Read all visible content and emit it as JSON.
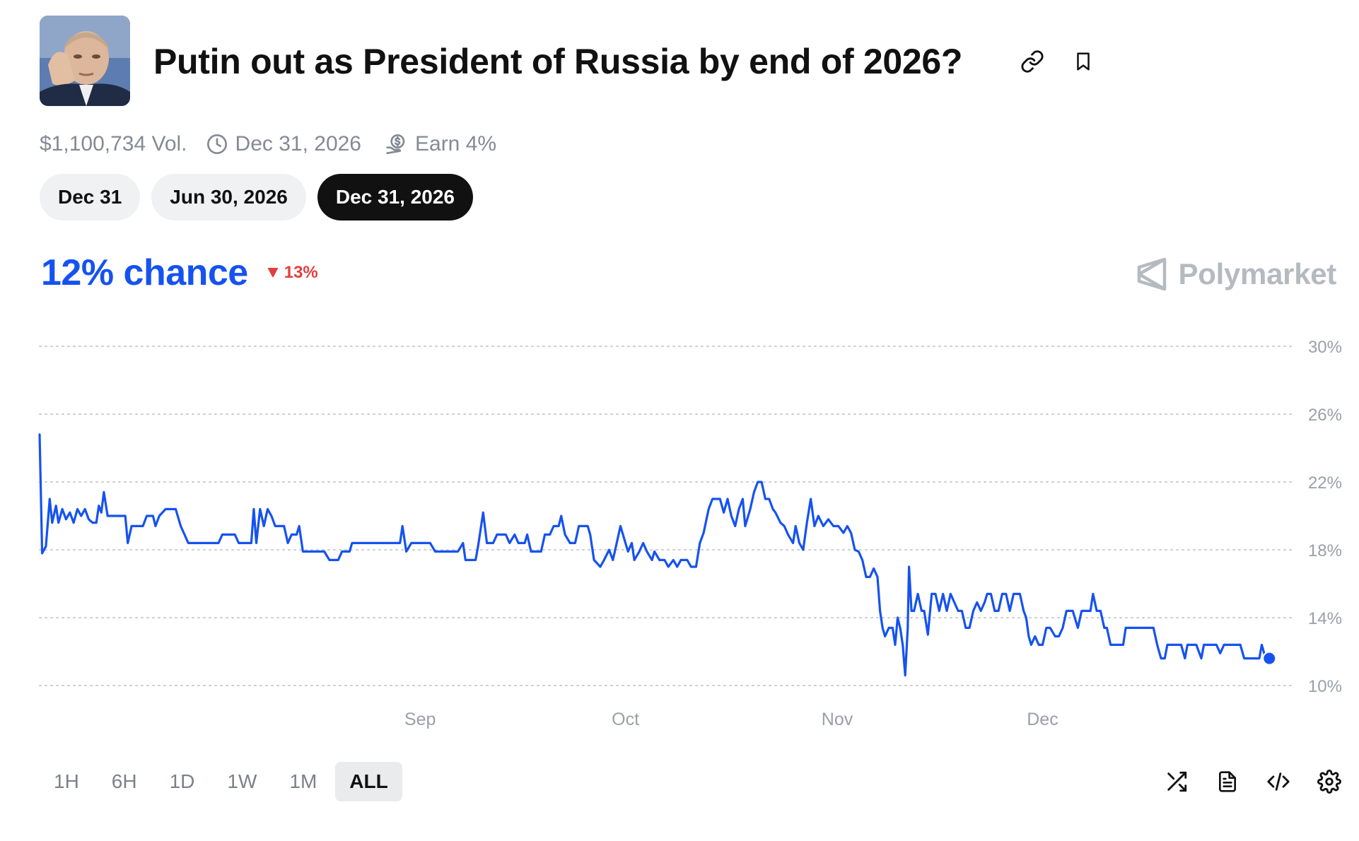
{
  "market": {
    "title": "Putin out as President of Russia by end of 2026?",
    "volume": "$1,100,734 Vol.",
    "end_date": "Dec 31, 2026",
    "earn": "Earn 4%"
  },
  "date_tabs": [
    {
      "label": "Dec 31",
      "active": false
    },
    {
      "label": "Jun 30, 2026",
      "active": false
    },
    {
      "label": "Dec 31, 2026",
      "active": true
    }
  ],
  "chance": {
    "value": "12% chance",
    "delta": "13%",
    "delta_direction": "down"
  },
  "brand": "Polymarket",
  "range_tabs": [
    {
      "label": "1H",
      "active": false
    },
    {
      "label": "6H",
      "active": false
    },
    {
      "label": "1D",
      "active": false
    },
    {
      "label": "1W",
      "active": false
    },
    {
      "label": "1M",
      "active": false
    },
    {
      "label": "ALL",
      "active": true
    }
  ],
  "icons": {
    "link": "link-icon",
    "bookmark": "bookmark-icon",
    "clock": "clock-icon",
    "earn": "earn-rewards-icon",
    "brand": "polymarket-logo-icon",
    "shuffle": "shuffle-icon",
    "document": "document-icon",
    "embed": "code-embed-icon",
    "settings": "gear-icon"
  },
  "colors": {
    "accent": "#1652f0",
    "negative": "#e23f3f",
    "muted": "#848a94"
  },
  "chart_data": {
    "type": "line",
    "y_unit": "%",
    "ylim": [
      10,
      30
    ],
    "y_ticks": [
      "30%",
      "26%",
      "22%",
      "18%",
      "14%",
      "10%"
    ],
    "y_tick_values": [
      30,
      26,
      22,
      18,
      14,
      10
    ],
    "x_ticks": [
      "Sep",
      "Oct",
      "Nov",
      "Dec"
    ],
    "x_tick_positions": [
      0.302,
      0.465,
      0.633,
      0.796
    ],
    "grid": "horizontal dotted",
    "series": [
      {
        "color": "#1652f0",
        "points": [
          [
            0.0,
            24.8
          ],
          [
            0.002,
            17.8
          ],
          [
            0.005,
            18.2
          ],
          [
            0.008,
            21.0
          ],
          [
            0.01,
            19.6
          ],
          [
            0.013,
            20.6
          ],
          [
            0.015,
            19.6
          ],
          [
            0.018,
            20.4
          ],
          [
            0.021,
            19.8
          ],
          [
            0.024,
            20.2
          ],
          [
            0.027,
            19.6
          ],
          [
            0.03,
            20.4
          ],
          [
            0.033,
            20.0
          ],
          [
            0.036,
            20.4
          ],
          [
            0.039,
            19.8
          ],
          [
            0.042,
            19.6
          ],
          [
            0.045,
            19.6
          ],
          [
            0.047,
            20.6
          ],
          [
            0.049,
            20.2
          ],
          [
            0.051,
            21.4
          ],
          [
            0.054,
            20.0
          ],
          [
            0.06,
            20.0
          ],
          [
            0.065,
            20.0
          ],
          [
            0.068,
            20.0
          ],
          [
            0.07,
            18.4
          ],
          [
            0.073,
            19.4
          ],
          [
            0.082,
            19.4
          ],
          [
            0.085,
            20.0
          ],
          [
            0.09,
            20.0
          ],
          [
            0.092,
            19.4
          ],
          [
            0.095,
            20.0
          ],
          [
            0.1,
            20.4
          ],
          [
            0.108,
            20.4
          ],
          [
            0.112,
            19.4
          ],
          [
            0.118,
            18.4
          ],
          [
            0.135,
            18.4
          ],
          [
            0.142,
            18.4
          ],
          [
            0.145,
            18.9
          ],
          [
            0.155,
            18.9
          ],
          [
            0.158,
            18.4
          ],
          [
            0.168,
            18.4
          ],
          [
            0.17,
            20.4
          ],
          [
            0.172,
            18.4
          ],
          [
            0.175,
            20.4
          ],
          [
            0.178,
            19.4
          ],
          [
            0.181,
            20.4
          ],
          [
            0.184,
            20.0
          ],
          [
            0.187,
            19.4
          ],
          [
            0.194,
            19.4
          ],
          [
            0.197,
            18.4
          ],
          [
            0.2,
            18.9
          ],
          [
            0.204,
            18.9
          ],
          [
            0.206,
            19.4
          ],
          [
            0.209,
            17.9
          ],
          [
            0.218,
            17.9
          ],
          [
            0.226,
            17.9
          ],
          [
            0.23,
            17.4
          ],
          [
            0.237,
            17.4
          ],
          [
            0.24,
            17.9
          ],
          [
            0.246,
            17.9
          ],
          [
            0.248,
            18.4
          ],
          [
            0.27,
            18.4
          ],
          [
            0.286,
            18.4
          ],
          [
            0.288,
            19.4
          ],
          [
            0.291,
            17.9
          ],
          [
            0.295,
            18.4
          ],
          [
            0.3,
            18.4
          ],
          [
            0.31,
            18.4
          ],
          [
            0.314,
            17.9
          ],
          [
            0.332,
            17.9
          ],
          [
            0.336,
            18.4
          ],
          [
            0.338,
            17.4
          ],
          [
            0.346,
            17.4
          ],
          [
            0.348,
            18.2
          ],
          [
            0.352,
            20.2
          ],
          [
            0.355,
            18.4
          ],
          [
            0.36,
            18.4
          ],
          [
            0.363,
            18.9
          ],
          [
            0.37,
            18.9
          ],
          [
            0.373,
            18.4
          ],
          [
            0.377,
            18.9
          ],
          [
            0.38,
            18.4
          ],
          [
            0.385,
            18.4
          ],
          [
            0.387,
            18.9
          ],
          [
            0.39,
            17.9
          ],
          [
            0.398,
            17.9
          ],
          [
            0.401,
            18.9
          ],
          [
            0.405,
            18.9
          ],
          [
            0.408,
            19.4
          ],
          [
            0.412,
            19.4
          ],
          [
            0.414,
            20.0
          ],
          [
            0.417,
            18.9
          ],
          [
            0.421,
            18.4
          ],
          [
            0.425,
            18.4
          ],
          [
            0.428,
            19.4
          ],
          [
            0.435,
            19.4
          ],
          [
            0.437,
            18.9
          ],
          [
            0.44,
            17.4
          ],
          [
            0.445,
            17.0
          ],
          [
            0.448,
            17.4
          ],
          [
            0.452,
            18.0
          ],
          [
            0.455,
            17.4
          ],
          [
            0.458,
            18.4
          ],
          [
            0.461,
            19.4
          ],
          [
            0.465,
            18.4
          ],
          [
            0.467,
            17.9
          ],
          [
            0.47,
            18.4
          ],
          [
            0.472,
            17.4
          ],
          [
            0.476,
            17.9
          ],
          [
            0.479,
            18.4
          ],
          [
            0.482,
            17.9
          ],
          [
            0.486,
            17.4
          ],
          [
            0.488,
            17.9
          ],
          [
            0.492,
            17.4
          ],
          [
            0.496,
            17.4
          ],
          [
            0.499,
            17.0
          ],
          [
            0.503,
            17.4
          ],
          [
            0.506,
            17.0
          ],
          [
            0.509,
            17.4
          ],
          [
            0.514,
            17.4
          ],
          [
            0.517,
            17.0
          ],
          [
            0.521,
            17.0
          ],
          [
            0.524,
            18.4
          ],
          [
            0.527,
            19.0
          ],
          [
            0.531,
            20.4
          ],
          [
            0.534,
            21.0
          ],
          [
            0.54,
            21.0
          ],
          [
            0.543,
            20.2
          ],
          [
            0.546,
            21.0
          ],
          [
            0.549,
            20.0
          ],
          [
            0.552,
            19.4
          ],
          [
            0.555,
            20.4
          ],
          [
            0.558,
            21.0
          ],
          [
            0.56,
            19.4
          ],
          [
            0.564,
            20.4
          ],
          [
            0.567,
            21.4
          ],
          [
            0.57,
            22.0
          ],
          [
            0.573,
            22.0
          ],
          [
            0.576,
            21.0
          ],
          [
            0.579,
            21.0
          ],
          [
            0.582,
            20.4
          ],
          [
            0.584,
            20.2
          ],
          [
            0.588,
            19.6
          ],
          [
            0.591,
            19.4
          ],
          [
            0.594,
            18.9
          ],
          [
            0.598,
            18.4
          ],
          [
            0.6,
            19.4
          ],
          [
            0.603,
            18.4
          ],
          [
            0.606,
            18.0
          ],
          [
            0.609,
            19.6
          ],
          [
            0.612,
            21.0
          ],
          [
            0.615,
            19.4
          ],
          [
            0.618,
            20.0
          ],
          [
            0.622,
            19.4
          ],
          [
            0.626,
            19.8
          ],
          [
            0.63,
            19.4
          ],
          [
            0.634,
            19.4
          ],
          [
            0.638,
            19.0
          ],
          [
            0.641,
            19.4
          ],
          [
            0.644,
            19.0
          ],
          [
            0.647,
            18.0
          ],
          [
            0.65,
            17.9
          ],
          [
            0.653,
            17.4
          ],
          [
            0.656,
            16.4
          ],
          [
            0.659,
            16.4
          ],
          [
            0.662,
            16.9
          ],
          [
            0.665,
            16.4
          ],
          [
            0.667,
            14.4
          ],
          [
            0.669,
            13.4
          ],
          [
            0.671,
            12.9
          ],
          [
            0.674,
            13.4
          ],
          [
            0.677,
            13.4
          ],
          [
            0.679,
            12.4
          ],
          [
            0.681,
            14.0
          ],
          [
            0.683,
            13.4
          ],
          [
            0.685,
            12.4
          ],
          [
            0.687,
            10.6
          ],
          [
            0.689,
            13.4
          ],
          [
            0.69,
            17.0
          ],
          [
            0.692,
            14.4
          ],
          [
            0.694,
            14.4
          ],
          [
            0.697,
            15.4
          ],
          [
            0.7,
            14.4
          ],
          [
            0.702,
            14.4
          ],
          [
            0.705,
            13.0
          ],
          [
            0.708,
            15.4
          ],
          [
            0.711,
            15.4
          ],
          [
            0.714,
            14.4
          ],
          [
            0.717,
            15.4
          ],
          [
            0.72,
            14.4
          ],
          [
            0.723,
            15.4
          ],
          [
            0.726,
            14.9
          ],
          [
            0.729,
            14.4
          ],
          [
            0.732,
            14.4
          ],
          [
            0.735,
            13.4
          ],
          [
            0.738,
            13.4
          ],
          [
            0.741,
            14.4
          ],
          [
            0.744,
            14.9
          ],
          [
            0.747,
            14.4
          ],
          [
            0.75,
            14.9
          ],
          [
            0.752,
            15.4
          ],
          [
            0.755,
            15.4
          ],
          [
            0.758,
            14.4
          ],
          [
            0.761,
            14.4
          ],
          [
            0.764,
            15.4
          ],
          [
            0.767,
            15.4
          ],
          [
            0.77,
            14.4
          ],
          [
            0.773,
            15.4
          ],
          [
            0.778,
            15.4
          ],
          [
            0.781,
            14.4
          ],
          [
            0.783,
            14.0
          ],
          [
            0.785,
            12.9
          ],
          [
            0.787,
            12.4
          ],
          [
            0.79,
            12.9
          ],
          [
            0.793,
            12.4
          ],
          [
            0.796,
            12.4
          ],
          [
            0.799,
            13.4
          ],
          [
            0.802,
            13.4
          ],
          [
            0.806,
            12.9
          ],
          [
            0.809,
            12.9
          ],
          [
            0.812,
            13.4
          ],
          [
            0.815,
            14.4
          ],
          [
            0.82,
            14.4
          ],
          [
            0.824,
            13.4
          ],
          [
            0.827,
            14.4
          ],
          [
            0.834,
            14.4
          ],
          [
            0.836,
            15.4
          ],
          [
            0.839,
            14.4
          ],
          [
            0.842,
            14.4
          ],
          [
            0.845,
            13.4
          ],
          [
            0.847,
            13.4
          ],
          [
            0.85,
            12.4
          ],
          [
            0.856,
            12.4
          ],
          [
            0.86,
            12.4
          ],
          [
            0.862,
            13.4
          ],
          [
            0.866,
            13.4
          ],
          [
            0.87,
            13.4
          ],
          [
            0.88,
            13.4
          ],
          [
            0.884,
            13.4
          ],
          [
            0.887,
            12.4
          ],
          [
            0.89,
            11.6
          ],
          [
            0.893,
            11.6
          ],
          [
            0.895,
            12.4
          ],
          [
            0.9,
            12.4
          ],
          [
            0.906,
            12.4
          ],
          [
            0.909,
            11.6
          ],
          [
            0.911,
            12.4
          ],
          [
            0.918,
            12.4
          ],
          [
            0.922,
            11.6
          ],
          [
            0.924,
            12.4
          ],
          [
            0.928,
            12.4
          ],
          [
            0.934,
            12.4
          ],
          [
            0.937,
            11.9
          ],
          [
            0.94,
            12.4
          ],
          [
            0.948,
            12.4
          ],
          [
            0.953,
            12.4
          ],
          [
            0.956,
            11.6
          ],
          [
            0.961,
            11.6
          ],
          [
            0.965,
            11.6
          ],
          [
            0.968,
            11.6
          ],
          [
            0.97,
            12.4
          ],
          [
            0.973,
            11.6
          ],
          [
            0.976,
            11.6
          ]
        ]
      }
    ],
    "last_point_marker": true
  }
}
